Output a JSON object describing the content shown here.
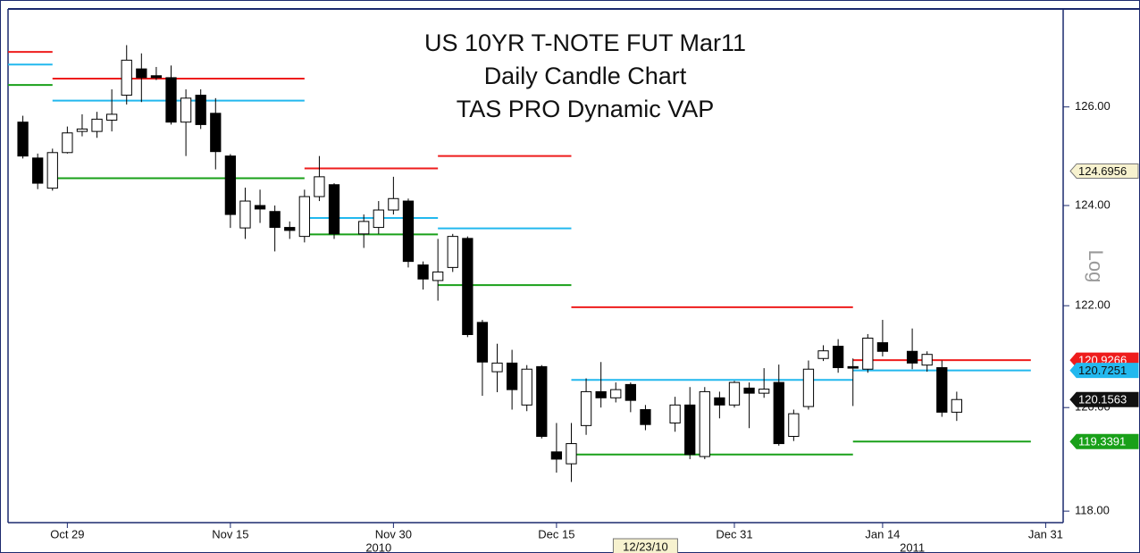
{
  "chart_data": {
    "type": "candlestick",
    "title_lines": [
      "US 10YR T-NOTE FUT  Mar11",
      "Daily Candle Chart",
      "TAS PRO Dynamic VAP"
    ],
    "x": [
      "2010-10-26",
      "2010-10-27",
      "2010-10-28",
      "2010-10-29",
      "2010-11-01",
      "2010-11-02",
      "2010-11-03",
      "2010-11-04",
      "2010-11-05",
      "2010-11-08",
      "2010-11-09",
      "2010-11-10",
      "2010-11-11",
      "2010-11-12",
      "2010-11-15",
      "2010-11-16",
      "2010-11-17",
      "2010-11-18",
      "2010-11-19",
      "2010-11-22",
      "2010-11-23",
      "2010-11-24",
      "2010-11-26",
      "2010-11-29",
      "2010-11-30",
      "2010-12-01",
      "2010-12-02",
      "2010-12-03",
      "2010-12-06",
      "2010-12-07",
      "2010-12-08",
      "2010-12-09",
      "2010-12-10",
      "2010-12-13",
      "2010-12-14",
      "2010-12-15",
      "2010-12-16",
      "2010-12-17",
      "2010-12-20",
      "2010-12-21",
      "2010-12-22",
      "2010-12-23",
      "2010-12-27",
      "2010-12-28",
      "2010-12-29",
      "2010-12-30",
      "2010-12-31",
      "2011-01-03",
      "2011-01-04",
      "2011-01-05",
      "2011-01-06",
      "2011-01-07",
      "2011-01-10",
      "2011-01-11",
      "2011-01-12",
      "2011-01-13",
      "2011-01-14",
      "2011-01-18",
      "2011-01-19",
      "2011-01-20",
      "2011-01-21"
    ],
    "open": [
      125.69,
      124.96,
      124.35,
      125.07,
      125.5,
      125.5,
      125.73,
      126.24,
      126.78,
      126.64,
      126.6,
      125.69,
      126.24,
      125.87,
      125.0,
      123.55,
      124.0,
      123.88,
      123.56,
      123.38,
      124.18,
      124.42,
      123.43,
      123.56,
      123.91,
      124.09,
      122.81,
      122.5,
      122.76,
      123.34,
      121.67,
      120.7,
      120.87,
      120.05,
      120.8,
      119.14,
      118.91,
      119.65,
      120.31,
      120.19,
      120.45,
      119.96,
      119.7,
      120.05,
      119.05,
      120.19,
      120.05,
      120.38,
      120.28,
      120.49,
      119.44,
      120.02,
      120.96,
      121.2,
      120.8,
      120.75,
      121.27,
      121.1,
      120.83,
      120.78,
      119.91
    ],
    "high": [
      125.82,
      125.05,
      125.15,
      125.6,
      125.85,
      125.9,
      126.36,
      127.27,
      127.1,
      126.82,
      126.85,
      126.36,
      126.36,
      126.18,
      125.04,
      124.36,
      124.32,
      124.0,
      123.68,
      124.32,
      125.0,
      124.45,
      123.82,
      124.09,
      124.58,
      124.14,
      122.88,
      123.33,
      123.43,
      123.38,
      121.72,
      121.25,
      121.13,
      120.83,
      120.83,
      119.7,
      119.7,
      120.57,
      120.89,
      120.49,
      120.49,
      120.05,
      120.21,
      120.4,
      120.4,
      120.31,
      120.52,
      120.49,
      120.77,
      120.84,
      119.96,
      120.92,
      121.22,
      121.34,
      120.96,
      121.44,
      121.72,
      121.55,
      121.1,
      120.92,
      120.31
    ],
    "low": [
      124.95,
      124.33,
      124.3,
      125.05,
      125.4,
      125.37,
      125.5,
      126.05,
      126.1,
      126.55,
      125.64,
      125.0,
      125.55,
      124.73,
      123.55,
      123.33,
      123.65,
      123.08,
      123.33,
      123.26,
      124.09,
      123.33,
      123.15,
      123.43,
      123.82,
      122.76,
      122.32,
      122.1,
      122.67,
      121.38,
      120.23,
      120.3,
      119.96,
      119.93,
      119.4,
      118.74,
      118.56,
      119.47,
      120.0,
      120.1,
      119.91,
      119.56,
      119.53,
      119.0,
      119.0,
      119.79,
      120.0,
      119.6,
      120.19,
      119.26,
      119.35,
      119.96,
      120.91,
      120.68,
      120.03,
      120.68,
      121.0,
      120.75,
      120.7,
      119.82,
      119.74
    ],
    "close": [
      125.0,
      124.45,
      125.07,
      125.47,
      125.55,
      125.75,
      125.85,
      126.96,
      126.6,
      126.6,
      125.69,
      126.18,
      125.64,
      125.09,
      123.82,
      124.09,
      123.93,
      123.56,
      123.5,
      124.18,
      124.58,
      123.43,
      123.68,
      123.91,
      124.14,
      122.88,
      122.53,
      122.67,
      123.38,
      121.43,
      120.89,
      120.87,
      120.35,
      120.75,
      119.44,
      119.0,
      119.3,
      120.31,
      120.19,
      120.35,
      120.14,
      119.67,
      120.05,
      119.09,
      120.31,
      120.05,
      120.49,
      120.28,
      120.36,
      119.3,
      119.88,
      120.75,
      121.11,
      120.78,
      120.77,
      121.36,
      121.1,
      120.87,
      121.04,
      119.91,
      120.1563
    ],
    "vap": {
      "colors": [
        "#ee1c1c",
        "#22b8ee",
        "#19a019"
      ],
      "segments": [
        {
          "start": "2010-10-25",
          "end": "2010-10-28",
          "values": [
            127.13,
            126.87,
            126.45
          ]
        },
        {
          "start": "2010-10-28",
          "end": "2010-11-22",
          "values": [
            126.58,
            126.13,
            124.55
          ]
        },
        {
          "start": "2010-11-22",
          "end": "2010-12-03",
          "values": [
            124.75,
            123.75,
            123.42
          ]
        },
        {
          "start": "2010-12-03",
          "end": "2010-12-16",
          "values": [
            125.0,
            123.54,
            122.41
          ]
        },
        {
          "start": "2010-12-16",
          "end": "2011-01-12",
          "values": [
            121.97,
            120.54,
            119.09
          ]
        },
        {
          "start": "2011-01-12",
          "end": "2011-01-28",
          "values": [
            120.9266,
            120.7251,
            119.3391
          ]
        }
      ]
    },
    "cursor_price": 124.6956,
    "cursor_date": {
      "value": "2010-12-23",
      "label": "12/23/10"
    },
    "xlim": [
      "2010-10-25",
      "2011-02-01"
    ],
    "xticks": [
      {
        "value": "2010-10-29",
        "label": "Oct 29"
      },
      {
        "value": "2010-11-15",
        "label": "Nov 15"
      },
      {
        "value": "2010-11-30",
        "label": "Nov 30"
      },
      {
        "value": "2010-12-15",
        "label": "Dec 15"
      },
      {
        "value": "2010-12-31",
        "label": "Dec 31"
      },
      {
        "value": "2011-01-14",
        "label": "Jan 14"
      },
      {
        "value": "2011-01-31",
        "label": "Jan 31"
      }
    ],
    "year_labels": [
      {
        "value": "2010-11-29",
        "label": "2010"
      },
      {
        "value": "2011-01-18",
        "label": "2011"
      }
    ],
    "ylim": [
      117.78,
      128.02
    ],
    "yticks": [
      {
        "value": 118,
        "label": "118.00"
      },
      {
        "value": 120,
        "label": "120.00"
      },
      {
        "value": 122,
        "label": "122.00"
      },
      {
        "value": 124,
        "label": "124.00"
      },
      {
        "value": 126,
        "label": "126.00"
      }
    ],
    "log_scale": true,
    "scale_label": "Log"
  }
}
